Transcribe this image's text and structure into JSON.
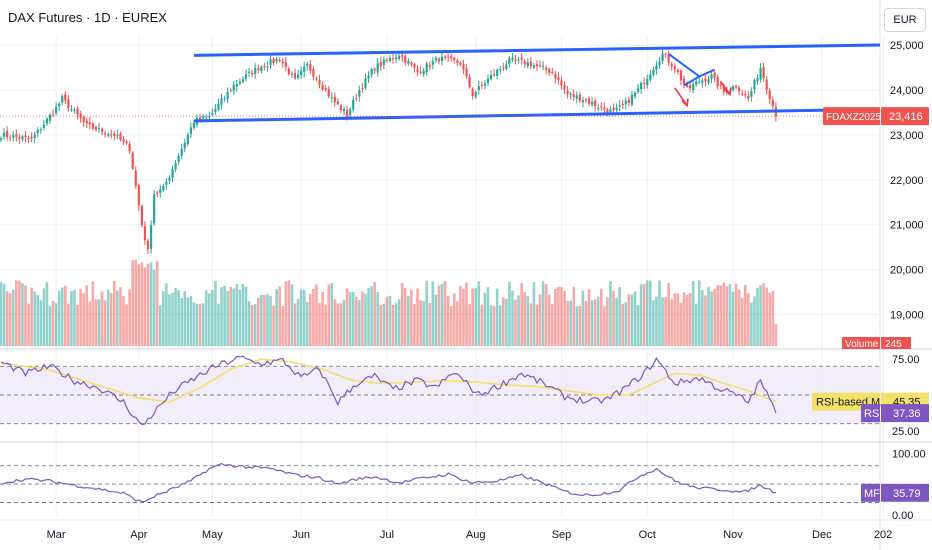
{
  "header": {
    "title": "DAX Futures · 1D · EUREX",
    "currency": "EUR"
  },
  "colors": {
    "up": "#26a69a",
    "down": "#ef5350",
    "channel": "#2962ff",
    "rsi": "#7e57c2",
    "rsi_ma": "#f3e06a",
    "band_fill": "#ede7f6",
    "grid": "#eef0f3",
    "axis_text": "#131722",
    "bg": "#ffffff"
  },
  "chart_data": [
    {
      "type": "candlestick",
      "title": "DAX Futures · 1D · EUREX",
      "symbol": "FDAXZ2025",
      "last_price": 23416,
      "last_price_label": "23,416",
      "ylim": [
        18300,
        25200
      ],
      "yticks": [
        19000,
        20000,
        21000,
        22000,
        23000,
        24000,
        25000
      ],
      "ytick_labels": [
        "19,000",
        "20,000",
        "21,000",
        "22,000",
        "23,000",
        "24,000",
        "25,000"
      ],
      "xlim": [
        0,
        287
      ],
      "xticks": [
        18,
        45,
        69,
        98,
        126,
        155,
        183,
        211,
        239,
        268,
        288
      ],
      "xtick_labels": [
        "Mar",
        "Apr",
        "May",
        "Jun",
        "Jul",
        "Aug",
        "Sep",
        "Oct",
        "Nov",
        "Dec",
        "202"
      ],
      "price_anchors": [
        [
          0,
          23000
        ],
        [
          10,
          22900
        ],
        [
          17,
          23500
        ],
        [
          20,
          23800
        ],
        [
          28,
          23200
        ],
        [
          37,
          23000
        ],
        [
          42,
          22700
        ],
        [
          46,
          21000
        ],
        [
          48,
          20400
        ],
        [
          50,
          21700
        ],
        [
          53,
          21800
        ],
        [
          57,
          22400
        ],
        [
          63,
          23300
        ],
        [
          68,
          23400
        ],
        [
          76,
          24100
        ],
        [
          84,
          24500
        ],
        [
          91,
          24700
        ],
        [
          96,
          24200
        ],
        [
          100,
          24550
        ],
        [
          108,
          23800
        ],
        [
          113,
          23450
        ],
        [
          117,
          24000
        ],
        [
          122,
          24500
        ],
        [
          130,
          24800
        ],
        [
          136,
          24400
        ],
        [
          143,
          24700
        ],
        [
          150,
          24600
        ],
        [
          154,
          23900
        ],
        [
          160,
          24300
        ],
        [
          166,
          24650
        ],
        [
          172,
          24600
        ],
        [
          180,
          24400
        ],
        [
          185,
          23900
        ],
        [
          190,
          23800
        ],
        [
          196,
          23600
        ],
        [
          200,
          23500
        ],
        [
          204,
          23700
        ],
        [
          208,
          24000
        ],
        [
          212,
          24400
        ],
        [
          216,
          24800
        ],
        [
          220,
          24500
        ],
        [
          224,
          24000
        ],
        [
          228,
          24200
        ],
        [
          232,
          24300
        ],
        [
          236,
          23950
        ],
        [
          240,
          24100
        ],
        [
          244,
          23800
        ],
        [
          248,
          24500
        ],
        [
          252,
          23650
        ],
        [
          253,
          23416
        ]
      ],
      "volume": {
        "label": "Volume",
        "last_label": "245",
        "max": 1000,
        "typical": [
          0.45,
          0.75
        ]
      },
      "annotations": [
        {
          "kind": "channel-top",
          "from": [
            63,
            24770
          ],
          "to": [
            287,
            25000
          ]
        },
        {
          "kind": "channel-bottom",
          "from": [
            63,
            23310
          ],
          "to": [
            287,
            23570
          ]
        },
        {
          "kind": "triangle-side",
          "from": [
            218,
            24800
          ],
          "to": [
            228,
            24300
          ]
        },
        {
          "kind": "triangle-side",
          "from": [
            228,
            24300
          ],
          "to": [
            233,
            24450
          ]
        },
        {
          "kind": "triangle-side",
          "from": [
            223,
            24100
          ],
          "to": [
            228,
            24300
          ]
        },
        {
          "kind": "arrow-down",
          "from": [
            220,
            24050
          ],
          "to": [
            224,
            23650
          ]
        },
        {
          "kind": "arrow-down",
          "from": [
            235,
            24180
          ],
          "to": [
            238,
            23900
          ]
        }
      ]
    },
    {
      "type": "line",
      "title": "RSI",
      "ylim": [
        20,
        80
      ],
      "levels": [
        70,
        50,
        30
      ],
      "ytick_labels": [
        "75.00",
        "25.00"
      ],
      "ytick_values": [
        75,
        25
      ],
      "series": [
        {
          "name": "RSI",
          "last": 37.36,
          "last_label": "37.36",
          "anchors": [
            [
              0,
              73
            ],
            [
              8,
              65
            ],
            [
              16,
              70
            ],
            [
              24,
              60
            ],
            [
              32,
              55
            ],
            [
              40,
              45
            ],
            [
              46,
              28
            ],
            [
              50,
              38
            ],
            [
              56,
              52
            ],
            [
              62,
              60
            ],
            [
              70,
              70
            ],
            [
              78,
              76
            ],
            [
              84,
              72
            ],
            [
              92,
              74
            ],
            [
              98,
              62
            ],
            [
              104,
              68
            ],
            [
              110,
              45
            ],
            [
              116,
              58
            ],
            [
              122,
              63
            ],
            [
              128,
              54
            ],
            [
              136,
              60
            ],
            [
              142,
              55
            ],
            [
              148,
              66
            ],
            [
              156,
              50
            ],
            [
              164,
              58
            ],
            [
              170,
              65
            ],
            [
              178,
              57
            ],
            [
              184,
              49
            ],
            [
              192,
              45
            ],
            [
              198,
              47
            ],
            [
              204,
              55
            ],
            [
              210,
              65
            ],
            [
              214,
              75
            ],
            [
              220,
              58
            ],
            [
              228,
              62
            ],
            [
              234,
              55
            ],
            [
              240,
              50
            ],
            [
              244,
              45
            ],
            [
              248,
              60
            ],
            [
              253,
              37.36
            ]
          ]
        },
        {
          "name": "RSI-based MA",
          "last": 45.35,
          "last_label": "45.35",
          "anchors": [
            [
              0,
              72
            ],
            [
              15,
              68
            ],
            [
              30,
              58
            ],
            [
              45,
              48
            ],
            [
              55,
              45
            ],
            [
              65,
              55
            ],
            [
              75,
              68
            ],
            [
              85,
              75
            ],
            [
              95,
              73
            ],
            [
              105,
              68
            ],
            [
              115,
              60
            ],
            [
              125,
              58
            ],
            [
              135,
              59
            ],
            [
              145,
              60
            ],
            [
              155,
              59
            ],
            [
              165,
              57
            ],
            [
              175,
              56
            ],
            [
              185,
              53
            ],
            [
              195,
              50
            ],
            [
              205,
              50
            ],
            [
              213,
              58
            ],
            [
              220,
              65
            ],
            [
              228,
              64
            ],
            [
              236,
              58
            ],
            [
              244,
              53
            ],
            [
              253,
              45.35
            ]
          ]
        }
      ]
    },
    {
      "type": "line",
      "title": "MF",
      "ylim": [
        -2,
        112
      ],
      "levels": [
        80,
        50,
        20
      ],
      "ytick_labels": [
        "100.00",
        "0.00"
      ],
      "ytick_values": [
        100,
        0
      ],
      "series": [
        {
          "name": "MF",
          "last": 35.79,
          "last_label": "35.79",
          "anchors": [
            [
              0,
              52
            ],
            [
              8,
              58
            ],
            [
              16,
              55
            ],
            [
              24,
              48
            ],
            [
              32,
              42
            ],
            [
              40,
              35
            ],
            [
              46,
              20
            ],
            [
              50,
              30
            ],
            [
              56,
              42
            ],
            [
              62,
              55
            ],
            [
              68,
              75
            ],
            [
              72,
              82
            ],
            [
              80,
              78
            ],
            [
              88,
              75
            ],
            [
              96,
              65
            ],
            [
              104,
              60
            ],
            [
              110,
              50
            ],
            [
              116,
              58
            ],
            [
              122,
              62
            ],
            [
              130,
              52
            ],
            [
              138,
              60
            ],
            [
              146,
              66
            ],
            [
              154,
              52
            ],
            [
              162,
              55
            ],
            [
              170,
              64
            ],
            [
              178,
              50
            ],
            [
              184,
              38
            ],
            [
              190,
              32
            ],
            [
              196,
              34
            ],
            [
              202,
              40
            ],
            [
              208,
              62
            ],
            [
              214,
              75
            ],
            [
              220,
              55
            ],
            [
              226,
              45
            ],
            [
              232,
              42
            ],
            [
              238,
              40
            ],
            [
              242,
              36
            ],
            [
              248,
              48
            ],
            [
              253,
              35.79
            ]
          ]
        }
      ]
    }
  ]
}
